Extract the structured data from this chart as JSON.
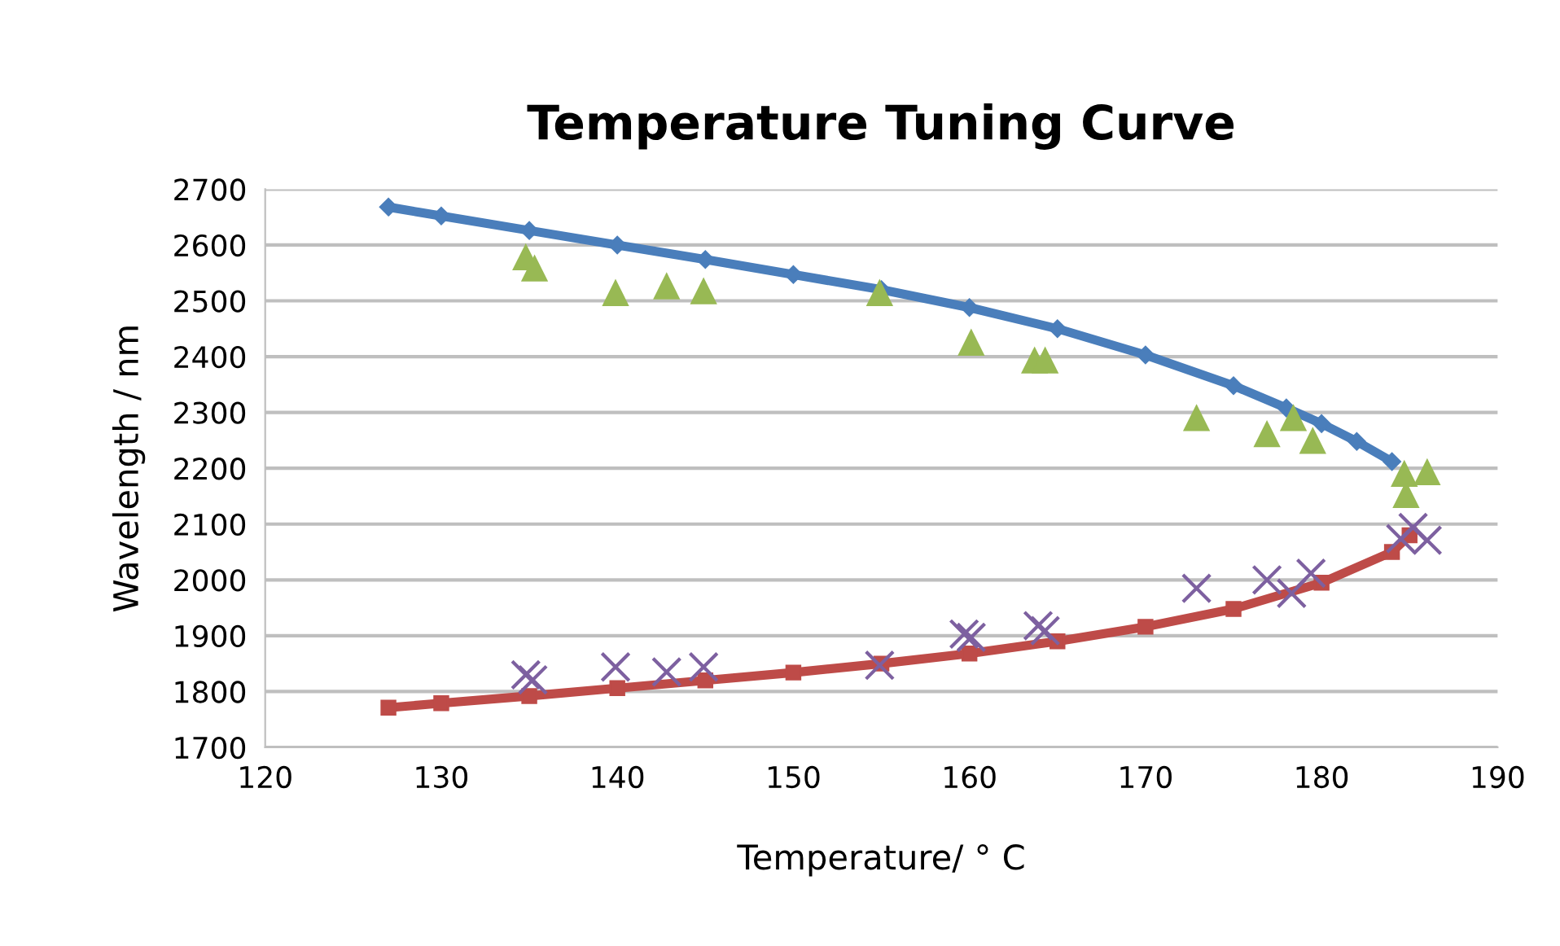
{
  "chart_data": {
    "type": "scatter",
    "title": "Temperature Tuning Curve",
    "xlabel": "Temperature/ ° C",
    "ylabel": "Wavelength / nm",
    "xlim": [
      120,
      190
    ],
    "xticks": [
      120,
      130,
      140,
      150,
      160,
      170,
      180,
      190
    ],
    "ylim": [
      1700,
      2700
    ],
    "yticks": [
      1700,
      1800,
      1900,
      2000,
      2100,
      2200,
      2300,
      2400,
      2500,
      2600,
      2700
    ],
    "grid": "y",
    "legend": false,
    "series": [
      {
        "type": "line",
        "color": "#4a7ebb",
        "marker": "diamond",
        "x": [
          127,
          130,
          135,
          140,
          145,
          150,
          155,
          160,
          165,
          170,
          175,
          178,
          180,
          182,
          184
        ],
        "values": [
          2668,
          2652,
          2626,
          2600,
          2574,
          2547,
          2520,
          2488,
          2450,
          2403,
          2348,
          2308,
          2280,
          2248,
          2212
        ]
      },
      {
        "type": "line",
        "color": "#be4b48",
        "marker": "square",
        "x": [
          127,
          130,
          135,
          140,
          145,
          150,
          155,
          160,
          165,
          170,
          175,
          180,
          184,
          185
        ],
        "values": [
          1771,
          1779,
          1792,
          1806,
          1820,
          1834,
          1850,
          1868,
          1890,
          1916,
          1948,
          1995,
          2050,
          2080
        ]
      },
      {
        "color": "#98b954",
        "marker": "triangle",
        "x": [
          134.8,
          135.3,
          139.9,
          142.8,
          144.9,
          154.9,
          160.1,
          163.7,
          164.3,
          172.9,
          176.9,
          178.4,
          179.5,
          184.7,
          184.8,
          186.0
        ],
        "values": [
          2579,
          2559,
          2515,
          2527,
          2518,
          2515,
          2426,
          2394,
          2394,
          2291,
          2262,
          2291,
          2250,
          2191,
          2153,
          2194
        ]
      },
      {
        "color": "#7d60a0",
        "marker": "cross",
        "x": [
          134.8,
          135.2,
          139.9,
          142.8,
          144.9,
          154.9,
          159.7,
          160.1,
          163.9,
          164.3,
          172.9,
          176.9,
          178.3,
          179.4,
          184.5,
          185.2,
          186.0
        ],
        "values": [
          1830,
          1821,
          1844,
          1835,
          1844,
          1847,
          1903,
          1897,
          1918,
          1909,
          1985,
          2000,
          1976,
          2012,
          2074,
          2094,
          2071
        ]
      }
    ]
  }
}
